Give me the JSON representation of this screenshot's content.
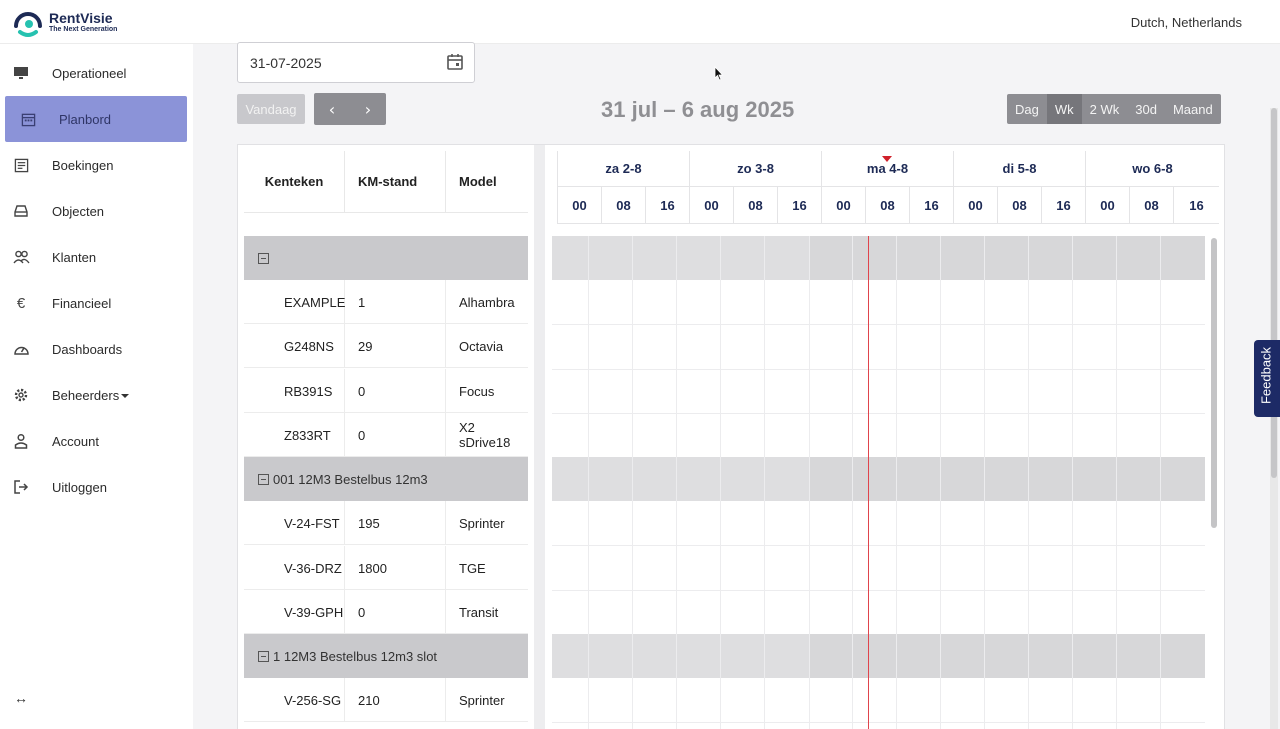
{
  "app": {
    "brand": "RentVisie",
    "tagline": "The Next Generation",
    "language": "Dutch, Netherlands",
    "accent_color": "#8b93d8",
    "brand_color": "#1d2a55"
  },
  "sidebar": {
    "items": [
      {
        "label": "Operationeel",
        "icon": "monitor-icon"
      },
      {
        "label": "Planbord",
        "icon": "calendar-icon",
        "active": true
      },
      {
        "label": "Boekingen",
        "icon": "bookings-icon"
      },
      {
        "label": "Objecten",
        "icon": "drive-icon"
      },
      {
        "label": "Klanten",
        "icon": "users-icon"
      },
      {
        "label": "Financieel",
        "icon": "euro-icon"
      },
      {
        "label": "Dashboards",
        "icon": "gauge-icon"
      },
      {
        "label": "Beheerders",
        "icon": "gear-icon",
        "has_dropdown": true
      },
      {
        "label": "Account",
        "icon": "user-icon"
      },
      {
        "label": "Uitloggen",
        "icon": "logout-icon"
      }
    ],
    "collapse_label": "↔"
  },
  "toolbar": {
    "date_value": "31-07-2025",
    "today_label": "Vandaag",
    "prev_label": "‹",
    "next_label": "›",
    "period_title": "31 jul – 6 aug 2025",
    "views": [
      {
        "label": "Dag"
      },
      {
        "label": "Wk",
        "active": true
      },
      {
        "label": "2 Wk"
      },
      {
        "label": "30d"
      },
      {
        "label": "Maand"
      }
    ]
  },
  "table": {
    "headers": [
      "Kenteken",
      "KM-stand",
      "Model"
    ],
    "rows": [
      {
        "type": "group",
        "label": ""
      },
      {
        "type": "item",
        "kenteken": "EXAMPLE",
        "km": "1",
        "model": "Alhambra"
      },
      {
        "type": "item",
        "kenteken": "G248NS",
        "km": "29",
        "model": "Octavia"
      },
      {
        "type": "item",
        "kenteken": "RB391S",
        "km": "0",
        "model": "Focus"
      },
      {
        "type": "item",
        "kenteken": "Z833RT",
        "km": "0",
        "model": "X2 sDrive18"
      },
      {
        "type": "group",
        "label": "001 12M3 Bestelbus 12m3"
      },
      {
        "type": "item",
        "kenteken": "V-24-FST",
        "km": "195",
        "model": "Sprinter"
      },
      {
        "type": "item",
        "kenteken": "V-36-DRZ",
        "km": "1800",
        "model": "TGE"
      },
      {
        "type": "item",
        "kenteken": "V-39-GPH",
        "km": "0",
        "model": "Transit"
      },
      {
        "type": "group",
        "label": "1 12M3 Bestelbus 12m3 slot"
      },
      {
        "type": "item",
        "kenteken": "V-256-SG",
        "km": "210",
        "model": "Sprinter"
      }
    ]
  },
  "timeline": {
    "days": [
      "za 2-8",
      "zo 3-8",
      "ma 4-8",
      "di 5-8",
      "wo 6-8"
    ],
    "hours": [
      "00",
      "08",
      "16"
    ],
    "now_color": "#d0202a"
  },
  "feedback_label": "Feedback"
}
